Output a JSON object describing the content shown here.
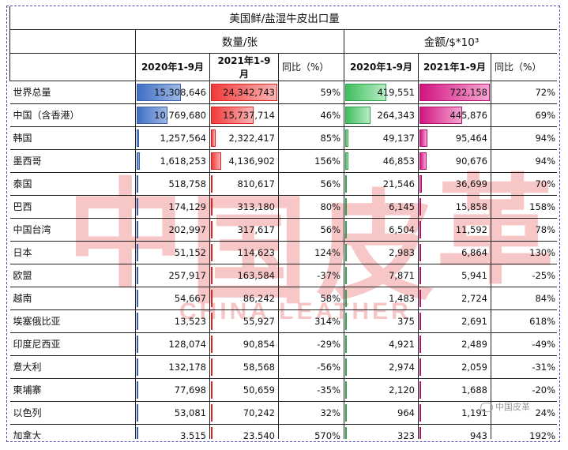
{
  "title": "美国鲜/盐湿牛皮出口量",
  "groups": {
    "quantity": "数量/张",
    "amount": "金额/$*10³"
  },
  "columns": {
    "q2020": "2020年1-9月",
    "q2021": "2021年1-9月",
    "q_yoy": "同比（%）",
    "a2020": "2020年1-9月",
    "a2021": "2021年1-9月",
    "a_yoy": "同比（%）"
  },
  "rows": [
    {
      "name": "世界总量",
      "q2020": "15,308,646",
      "q2021": "24,342,743",
      "q_yoy": "59%",
      "a2020": "419,551",
      "a2021": "722,158",
      "a_yoy": "72%"
    },
    {
      "name": "中国（含香港）",
      "q2020": "10,769,680",
      "q2021": "15,737,714",
      "q_yoy": "46%",
      "a2020": "264,343",
      "a2021": "445,876",
      "a_yoy": "69%"
    },
    {
      "name": "韩国",
      "q2020": "1,257,564",
      "q2021": "2,322,417",
      "q_yoy": "85%",
      "a2020": "49,137",
      "a2021": "95,464",
      "a_yoy": "94%"
    },
    {
      "name": "墨西哥",
      "q2020": "1,618,253",
      "q2021": "4,136,902",
      "q_yoy": "156%",
      "a2020": "46,853",
      "a2021": "90,676",
      "a_yoy": "94%"
    },
    {
      "name": "泰国",
      "q2020": "518,758",
      "q2021": "810,617",
      "q_yoy": "56%",
      "a2020": "21,546",
      "a2021": "36,699",
      "a_yoy": "70%"
    },
    {
      "name": "巴西",
      "q2020": "174,129",
      "q2021": "313,180",
      "q_yoy": "80%",
      "a2020": "6,145",
      "a2021": "15,858",
      "a_yoy": "158%"
    },
    {
      "name": "中国台湾",
      "q2020": "202,997",
      "q2021": "317,617",
      "q_yoy": "56%",
      "a2020": "6,504",
      "a2021": "11,592",
      "a_yoy": "78%"
    },
    {
      "name": "日本",
      "q2020": "51,152",
      "q2021": "114,623",
      "q_yoy": "124%",
      "a2020": "2,983",
      "a2021": "6,864",
      "a_yoy": "130%"
    },
    {
      "name": "欧盟",
      "q2020": "257,917",
      "q2021": "163,584",
      "q_yoy": "-37%",
      "a2020": "7,871",
      "a2021": "5,941",
      "a_yoy": "-25%"
    },
    {
      "name": "越南",
      "q2020": "54,667",
      "q2021": "86,242",
      "q_yoy": "58%",
      "a2020": "1,483",
      "a2021": "2,724",
      "a_yoy": "84%"
    },
    {
      "name": "埃塞俄比亚",
      "q2020": "13,523",
      "q2021": "55,927",
      "q_yoy": "314%",
      "a2020": "375",
      "a2021": "2,691",
      "a_yoy": "618%"
    },
    {
      "name": "印度尼西亚",
      "q2020": "128,074",
      "q2021": "90,854",
      "q_yoy": "-29%",
      "a2020": "4,921",
      "a2021": "2,489",
      "a_yoy": "-49%"
    },
    {
      "name": "意大利",
      "q2020": "132,178",
      "q2021": "58,568",
      "q_yoy": "-56%",
      "a2020": "2,974",
      "a2021": "2,059",
      "a_yoy": "-31%"
    },
    {
      "name": "柬埔寨",
      "q2020": "77,698",
      "q2021": "50,659",
      "q_yoy": "-35%",
      "a2020": "2,120",
      "a2021": "1,688",
      "a_yoy": "-20%"
    },
    {
      "name": "以色列",
      "q2020": "53,081",
      "q2021": "70,242",
      "q_yoy": "32%",
      "a2020": "964",
      "a2021": "1,191",
      "a_yoy": "24%"
    },
    {
      "name": "加拿大",
      "q2020": "3,515",
      "q2021": "23,540",
      "q_yoy": "570%",
      "a2020": "323",
      "a2021": "943",
      "a_yoy": "192%"
    }
  ],
  "bar_colors": {
    "q2020": "#3f6fc4",
    "q2021": "#f03a3a",
    "a2020": "#3fbf5f",
    "a2021": "#d0157f"
  },
  "watermark": {
    "chars": [
      "中",
      "国",
      "皮",
      "革"
    ],
    "sub": "CHINA LEATHER"
  },
  "logo": {
    "icon": "wechat-icon",
    "text": "中国皮革"
  }
}
